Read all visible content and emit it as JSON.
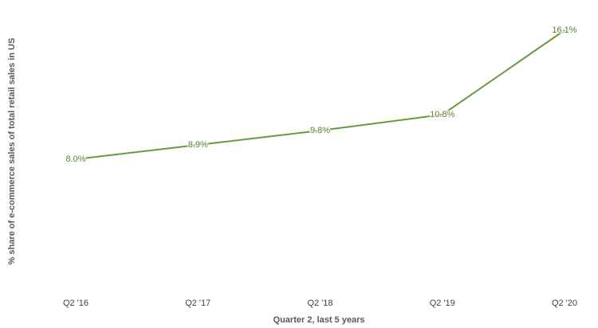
{
  "chart_data": {
    "type": "line",
    "x_label": "Quarter 2, last 5 years",
    "y_label": "% share of e-commerce sales of total retail sales in US",
    "categories": [
      "Q2 '16",
      "Q2 '17",
      "Q2 '18",
      "Q2 '19",
      "Q2 '20"
    ],
    "series": [
      {
        "color": "#6b9a3a",
        "values": [
          8.0,
          8.9,
          9.8,
          10.8,
          16.1
        ],
        "value_labels": [
          "8.0%",
          "8.9%",
          "9.8%",
          "10.8%",
          "16.1%"
        ]
      }
    ],
    "ylim": [
      0,
      17
    ]
  }
}
